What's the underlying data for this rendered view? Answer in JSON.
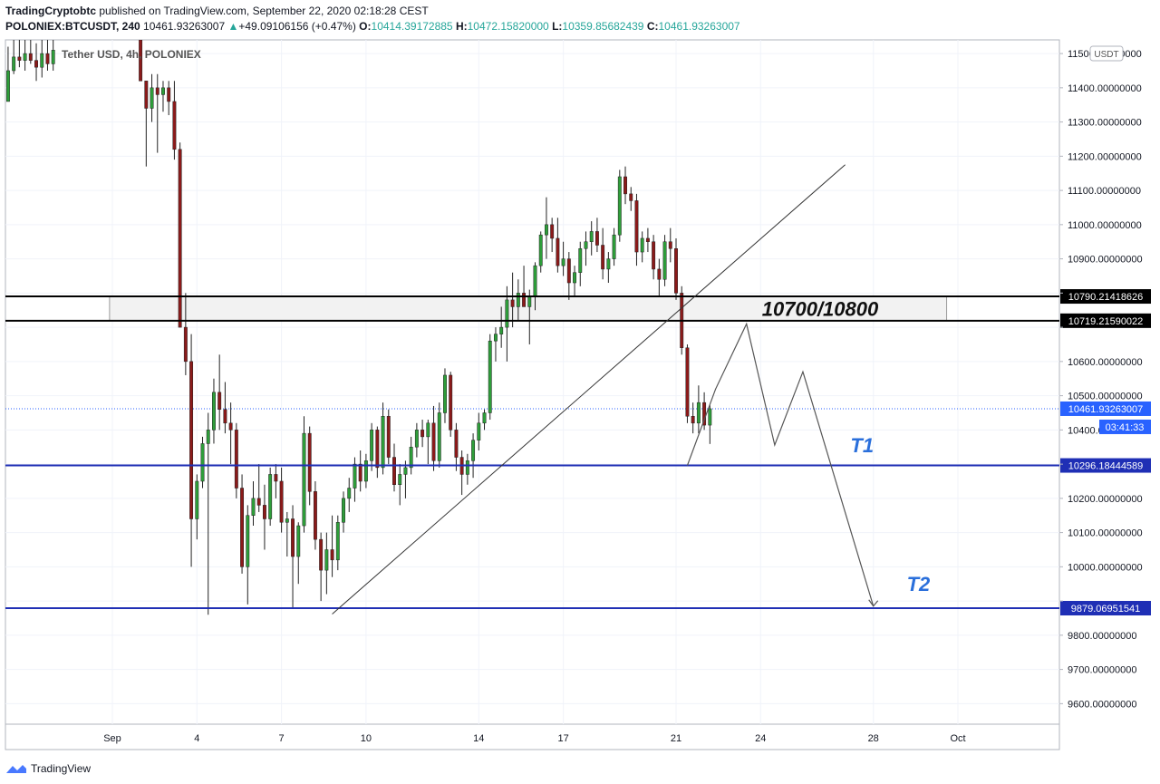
{
  "header": {
    "publisher": "TradingCryptobtc",
    "published_text": " published on TradingView.com, September 22, 2020 02:18:28 CEST",
    "symbol": "POLONIEX:BTCUSDT, 240",
    "last": "10461.93263007",
    "change": "+49.09106156 (+0.47%)",
    "o_label": "O:",
    "o_value": "10414.39172885",
    "h_label": "H:",
    "h_value": "10472.15820000",
    "l_label": "L:",
    "l_value": "10359.85682439",
    "c_label": "C:",
    "c_value": "10461.93263007"
  },
  "legend": "Tether USD, 4h, POLONIEX",
  "currency_badge": "USDT",
  "footer_brand": "TradingView",
  "colors": {
    "up": "#26a69a",
    "down": "#8b1a1a",
    "up_body": "#2e9e3a",
    "level_blue": "#1f2fb5",
    "level_black": "#000000",
    "price_line": "#2962ff"
  },
  "chart_data": {
    "type": "candlestick",
    "ylim": [
      9540,
      11540
    ],
    "y_ticks": [
      9600,
      9700,
      9800,
      9900,
      10000,
      10100,
      10200,
      10300,
      10400,
      10500,
      10600,
      10700,
      10800,
      10900,
      11000,
      11100,
      11200,
      11300,
      11400,
      11500
    ],
    "y_tick_labels": [
      "9600.00000000",
      "9700.00000000",
      "9800.00000000",
      "",
      "10000.00000000",
      "10100.00000000",
      "10200.00000000",
      "",
      "10400.00000000",
      "10500.00000000",
      "10600.00000000",
      "",
      "",
      "10900.00000000",
      "11000.00000000",
      "11100.00000000",
      "11200.00000000",
      "11300.00000000",
      "11400.00000000",
      "11500.00000000"
    ],
    "x_labels": [
      {
        "label": "Sep",
        "day": 0
      },
      {
        "label": "4",
        "day": 3
      },
      {
        "label": "7",
        "day": 6
      },
      {
        "label": "10",
        "day": 9
      },
      {
        "label": "14",
        "day": 13
      },
      {
        "label": "17",
        "day": 16
      },
      {
        "label": "21",
        "day": 20
      },
      {
        "label": "24",
        "day": 23
      },
      {
        "label": "28",
        "day": 27
      },
      {
        "label": "Oct",
        "day": 30
      }
    ],
    "levels": [
      {
        "value": 10790.21418626,
        "label": "10790.21418626",
        "color": "black"
      },
      {
        "value": 10719.21590022,
        "label": "10719.21590022",
        "color": "black"
      },
      {
        "value": 10296.18444589,
        "label": "10296.18444589",
        "color": "blue"
      },
      {
        "value": 9879.06951541,
        "label": "9879.06951541",
        "color": "blue"
      }
    ],
    "last_price": {
      "value": 10461.93263007,
      "label": "10461.93263007",
      "countdown": "03:41:33"
    },
    "zone": {
      "from": 10719.21590022,
      "to": 10790.21418626,
      "label": "10700/10800",
      "day_start": -0.1,
      "day_end": 29.6
    },
    "targets": [
      {
        "label": "T1",
        "day": 26.6,
        "value": 10335
      },
      {
        "label": "T2",
        "day": 28.6,
        "value": 9930
      }
    ],
    "trendline": [
      {
        "day": 7.8,
        "value": 9862
      },
      {
        "day": 26.0,
        "value": 11175
      }
    ],
    "projection": [
      {
        "day": 20.4,
        "value": 10296
      },
      {
        "day": 21.4,
        "value": 10519
      },
      {
        "day": 22.5,
        "value": 10710
      },
      {
        "day": 23.5,
        "value": 10356
      },
      {
        "day": 24.5,
        "value": 10570
      },
      {
        "day": 27.0,
        "value": 9885
      }
    ],
    "candles": [
      {
        "day": -3.7,
        "o": 11360,
        "h": 11520,
        "l": 11360,
        "c": 11450
      },
      {
        "day": -3.5,
        "o": 11450,
        "h": 11540,
        "l": 11440,
        "c": 11490
      },
      {
        "day": -3.3,
        "o": 11490,
        "h": 11540,
        "l": 11460,
        "c": 11480
      },
      {
        "day": -3.1,
        "o": 11480,
        "h": 11540,
        "l": 11450,
        "c": 11500
      },
      {
        "day": -2.9,
        "o": 11500,
        "h": 11540,
        "l": 11470,
        "c": 11480
      },
      {
        "day": -2.7,
        "o": 11480,
        "h": 11530,
        "l": 11420,
        "c": 11460
      },
      {
        "day": -2.5,
        "o": 11460,
        "h": 11540,
        "l": 11430,
        "c": 11500
      },
      {
        "day": -2.3,
        "o": 11500,
        "h": 11540,
        "l": 11450,
        "c": 11470
      },
      {
        "day": -2.1,
        "o": 11470,
        "h": 11540,
        "l": 11450,
        "c": 11510
      },
      {
        "day": 1.0,
        "o": 11540,
        "h": 11560,
        "l": 11420,
        "c": 11420
      },
      {
        "day": 1.2,
        "o": 11420,
        "h": 11420,
        "l": 11170,
        "c": 11340
      },
      {
        "day": 1.4,
        "o": 11340,
        "h": 11440,
        "l": 11300,
        "c": 11400
      },
      {
        "day": 1.6,
        "o": 11400,
        "h": 11440,
        "l": 11210,
        "c": 11380
      },
      {
        "day": 1.8,
        "o": 11380,
        "h": 11420,
        "l": 11330,
        "c": 11400
      },
      {
        "day": 2.0,
        "o": 11400,
        "h": 11420,
        "l": 11320,
        "c": 11360
      },
      {
        "day": 2.2,
        "o": 11360,
        "h": 11420,
        "l": 11190,
        "c": 11220
      },
      {
        "day": 2.4,
        "o": 11220,
        "h": 11240,
        "l": 10700,
        "c": 10700
      },
      {
        "day": 2.6,
        "o": 10700,
        "h": 10800,
        "l": 10560,
        "c": 10600
      },
      {
        "day": 2.8,
        "o": 10600,
        "h": 10680,
        "l": 10000,
        "c": 10140
      },
      {
        "day": 3.0,
        "o": 10140,
        "h": 10270,
        "l": 10080,
        "c": 10250
      },
      {
        "day": 3.2,
        "o": 10250,
        "h": 10380,
        "l": 10230,
        "c": 10360
      },
      {
        "day": 3.4,
        "o": 10360,
        "h": 10450,
        "l": 9860,
        "c": 10400
      },
      {
        "day": 3.6,
        "o": 10400,
        "h": 10550,
        "l": 10360,
        "c": 10510
      },
      {
        "day": 3.8,
        "o": 10510,
        "h": 10620,
        "l": 10400,
        "c": 10460
      },
      {
        "day": 4.0,
        "o": 10460,
        "h": 10540,
        "l": 10390,
        "c": 10420
      },
      {
        "day": 4.2,
        "o": 10420,
        "h": 10480,
        "l": 10300,
        "c": 10400
      },
      {
        "day": 4.4,
        "o": 10400,
        "h": 10420,
        "l": 10200,
        "c": 10230
      },
      {
        "day": 4.6,
        "o": 10230,
        "h": 10270,
        "l": 9980,
        "c": 10000
      },
      {
        "day": 4.8,
        "o": 10000,
        "h": 10180,
        "l": 9890,
        "c": 10150
      },
      {
        "day": 5.0,
        "o": 10150,
        "h": 10250,
        "l": 10120,
        "c": 10200
      },
      {
        "day": 5.2,
        "o": 10200,
        "h": 10300,
        "l": 10160,
        "c": 10180
      },
      {
        "day": 5.4,
        "o": 10180,
        "h": 10240,
        "l": 10050,
        "c": 10140
      },
      {
        "day": 5.6,
        "o": 10140,
        "h": 10290,
        "l": 10120,
        "c": 10270
      },
      {
        "day": 5.8,
        "o": 10270,
        "h": 10300,
        "l": 10200,
        "c": 10250
      },
      {
        "day": 6.0,
        "o": 10250,
        "h": 10290,
        "l": 10100,
        "c": 10130
      },
      {
        "day": 6.2,
        "o": 10130,
        "h": 10160,
        "l": 10030,
        "c": 10140
      },
      {
        "day": 6.4,
        "o": 10140,
        "h": 10180,
        "l": 9880,
        "c": 10030
      },
      {
        "day": 6.6,
        "o": 10030,
        "h": 10130,
        "l": 9950,
        "c": 10120
      },
      {
        "day": 6.8,
        "o": 10120,
        "h": 10440,
        "l": 10100,
        "c": 10390
      },
      {
        "day": 7.0,
        "o": 10390,
        "h": 10410,
        "l": 10180,
        "c": 10220
      },
      {
        "day": 7.2,
        "o": 10220,
        "h": 10250,
        "l": 10050,
        "c": 10080
      },
      {
        "day": 7.4,
        "o": 10080,
        "h": 10100,
        "l": 9900,
        "c": 9990
      },
      {
        "day": 7.6,
        "o": 9990,
        "h": 10100,
        "l": 9920,
        "c": 10050
      },
      {
        "day": 7.8,
        "o": 10050,
        "h": 10150,
        "l": 9970,
        "c": 10020
      },
      {
        "day": 8.0,
        "o": 10020,
        "h": 10150,
        "l": 9990,
        "c": 10130
      },
      {
        "day": 8.2,
        "o": 10130,
        "h": 10220,
        "l": 10100,
        "c": 10200
      },
      {
        "day": 8.4,
        "o": 10200,
        "h": 10260,
        "l": 10160,
        "c": 10230
      },
      {
        "day": 8.6,
        "o": 10230,
        "h": 10320,
        "l": 10190,
        "c": 10300
      },
      {
        "day": 8.8,
        "o": 10300,
        "h": 10340,
        "l": 10220,
        "c": 10250
      },
      {
        "day": 9.0,
        "o": 10250,
        "h": 10330,
        "l": 10230,
        "c": 10310
      },
      {
        "day": 9.2,
        "o": 10310,
        "h": 10420,
        "l": 10280,
        "c": 10400
      },
      {
        "day": 9.4,
        "o": 10400,
        "h": 10410,
        "l": 10260,
        "c": 10290
      },
      {
        "day": 9.6,
        "o": 10290,
        "h": 10480,
        "l": 10270,
        "c": 10440
      },
      {
        "day": 9.8,
        "o": 10440,
        "h": 10460,
        "l": 10300,
        "c": 10320
      },
      {
        "day": 10.0,
        "o": 10320,
        "h": 10360,
        "l": 10220,
        "c": 10240
      },
      {
        "day": 10.2,
        "o": 10240,
        "h": 10300,
        "l": 10180,
        "c": 10270
      },
      {
        "day": 10.4,
        "o": 10270,
        "h": 10310,
        "l": 10200,
        "c": 10290
      },
      {
        "day": 10.6,
        "o": 10290,
        "h": 10380,
        "l": 10270,
        "c": 10350
      },
      {
        "day": 10.8,
        "o": 10350,
        "h": 10420,
        "l": 10320,
        "c": 10400
      },
      {
        "day": 11.0,
        "o": 10400,
        "h": 10430,
        "l": 10350,
        "c": 10380
      },
      {
        "day": 11.2,
        "o": 10380,
        "h": 10430,
        "l": 10300,
        "c": 10420
      },
      {
        "day": 11.4,
        "o": 10420,
        "h": 10470,
        "l": 10280,
        "c": 10310
      },
      {
        "day": 11.6,
        "o": 10310,
        "h": 10480,
        "l": 10290,
        "c": 10450
      },
      {
        "day": 11.8,
        "o": 10450,
        "h": 10580,
        "l": 10420,
        "c": 10560
      },
      {
        "day": 12.0,
        "o": 10560,
        "h": 10570,
        "l": 10380,
        "c": 10400
      },
      {
        "day": 12.2,
        "o": 10400,
        "h": 10420,
        "l": 10280,
        "c": 10320
      },
      {
        "day": 12.4,
        "o": 10320,
        "h": 10340,
        "l": 10210,
        "c": 10270
      },
      {
        "day": 12.6,
        "o": 10270,
        "h": 10330,
        "l": 10240,
        "c": 10310
      },
      {
        "day": 12.8,
        "o": 10310,
        "h": 10390,
        "l": 10260,
        "c": 10370
      },
      {
        "day": 13.0,
        "o": 10370,
        "h": 10450,
        "l": 10340,
        "c": 10420
      },
      {
        "day": 13.2,
        "o": 10420,
        "h": 10460,
        "l": 10400,
        "c": 10450
      },
      {
        "day": 13.4,
        "o": 10450,
        "h": 10680,
        "l": 10430,
        "c": 10660
      },
      {
        "day": 13.6,
        "o": 10660,
        "h": 10700,
        "l": 10600,
        "c": 10680
      },
      {
        "day": 13.8,
        "o": 10680,
        "h": 10760,
        "l": 10640,
        "c": 10700
      },
      {
        "day": 14.0,
        "o": 10700,
        "h": 10820,
        "l": 10600,
        "c": 10780
      },
      {
        "day": 14.2,
        "o": 10780,
        "h": 10860,
        "l": 10700,
        "c": 10760
      },
      {
        "day": 14.4,
        "o": 10760,
        "h": 10840,
        "l": 10720,
        "c": 10800
      },
      {
        "day": 14.6,
        "o": 10800,
        "h": 10880,
        "l": 10760,
        "c": 10760
      },
      {
        "day": 14.8,
        "o": 10760,
        "h": 10810,
        "l": 10650,
        "c": 10790
      },
      {
        "day": 15.0,
        "o": 10790,
        "h": 10890,
        "l": 10750,
        "c": 10880
      },
      {
        "day": 15.2,
        "o": 10880,
        "h": 10980,
        "l": 10860,
        "c": 10970
      },
      {
        "day": 15.4,
        "o": 10970,
        "h": 11080,
        "l": 10900,
        "c": 11000
      },
      {
        "day": 15.6,
        "o": 11000,
        "h": 11020,
        "l": 10920,
        "c": 10960
      },
      {
        "day": 15.8,
        "o": 10960,
        "h": 11020,
        "l": 10860,
        "c": 10880
      },
      {
        "day": 16.0,
        "o": 10880,
        "h": 10950,
        "l": 10850,
        "c": 10900
      },
      {
        "day": 16.2,
        "o": 10900,
        "h": 10920,
        "l": 10780,
        "c": 10830
      },
      {
        "day": 16.4,
        "o": 10830,
        "h": 10880,
        "l": 10790,
        "c": 10860
      },
      {
        "day": 16.6,
        "o": 10860,
        "h": 10950,
        "l": 10820,
        "c": 10930
      },
      {
        "day": 16.8,
        "o": 10930,
        "h": 10980,
        "l": 10880,
        "c": 10950
      },
      {
        "day": 17.0,
        "o": 10950,
        "h": 11010,
        "l": 10910,
        "c": 10980
      },
      {
        "day": 17.2,
        "o": 10980,
        "h": 11020,
        "l": 10920,
        "c": 10940
      },
      {
        "day": 17.4,
        "o": 10940,
        "h": 10990,
        "l": 10840,
        "c": 10870
      },
      {
        "day": 17.6,
        "o": 10870,
        "h": 10920,
        "l": 10830,
        "c": 10900
      },
      {
        "day": 17.8,
        "o": 10900,
        "h": 10990,
        "l": 10880,
        "c": 10970
      },
      {
        "day": 18.0,
        "o": 10970,
        "h": 11160,
        "l": 10950,
        "c": 11140
      },
      {
        "day": 18.2,
        "o": 11140,
        "h": 11170,
        "l": 11060,
        "c": 11090
      },
      {
        "day": 18.4,
        "o": 11090,
        "h": 11110,
        "l": 11040,
        "c": 11070
      },
      {
        "day": 18.6,
        "o": 11070,
        "h": 11090,
        "l": 10880,
        "c": 10920
      },
      {
        "day": 18.8,
        "o": 10920,
        "h": 10980,
        "l": 10890,
        "c": 10960
      },
      {
        "day": 19.0,
        "o": 10960,
        "h": 10990,
        "l": 10920,
        "c": 10950
      },
      {
        "day": 19.2,
        "o": 10950,
        "h": 10970,
        "l": 10840,
        "c": 10870
      },
      {
        "day": 19.4,
        "o": 10870,
        "h": 10900,
        "l": 10790,
        "c": 10840
      },
      {
        "day": 19.6,
        "o": 10840,
        "h": 10970,
        "l": 10820,
        "c": 10950
      },
      {
        "day": 19.8,
        "o": 10950,
        "h": 10990,
        "l": 10890,
        "c": 10930
      },
      {
        "day": 20.0,
        "o": 10930,
        "h": 10960,
        "l": 10780,
        "c": 10800
      },
      {
        "day": 20.2,
        "o": 10800,
        "h": 10820,
        "l": 10620,
        "c": 10640
      },
      {
        "day": 20.4,
        "o": 10640,
        "h": 10650,
        "l": 10420,
        "c": 10440
      },
      {
        "day": 20.6,
        "o": 10440,
        "h": 10480,
        "l": 10390,
        "c": 10420
      },
      {
        "day": 20.8,
        "o": 10420,
        "h": 10530,
        "l": 10390,
        "c": 10480
      },
      {
        "day": 21.0,
        "o": 10480,
        "h": 10510,
        "l": 10400,
        "c": 10414
      },
      {
        "day": 21.2,
        "o": 10414,
        "h": 10472,
        "l": 10359,
        "c": 10462
      }
    ]
  }
}
